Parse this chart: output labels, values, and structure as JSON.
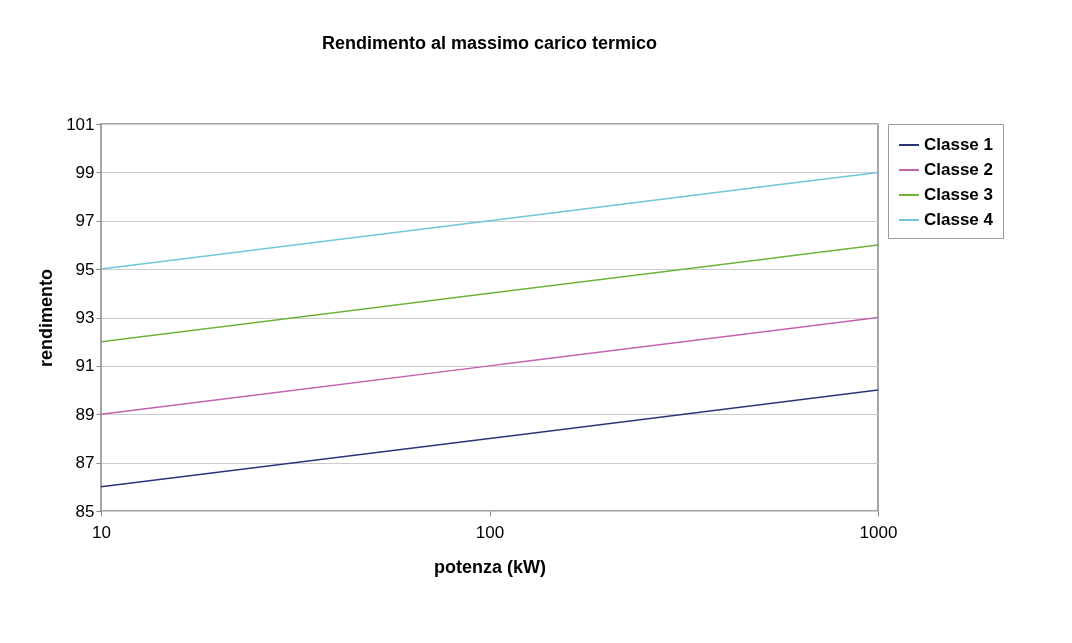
{
  "chart_data": {
    "type": "line",
    "title": "Rendimento al massimo carico termico",
    "xlabel": "potenza (kW)",
    "ylabel": "rendimento",
    "x": [
      10,
      100,
      1000
    ],
    "series": [
      {
        "name": "Classe 1",
        "color": "#2b3378",
        "values": [
          86,
          88,
          90
        ]
      },
      {
        "name": "Classe 2",
        "color": "#c462ac",
        "values": [
          89,
          91,
          93
        ]
      },
      {
        "name": "Classe 3",
        "color": "#6fb23a",
        "values": [
          92,
          94,
          96
        ]
      },
      {
        "name": "Classe 4",
        "color": "#6ec6d6",
        "values": [
          95,
          97,
          99
        ]
      }
    ],
    "xlim": [
      10,
      1000
    ],
    "xticks": [
      10,
      100,
      1000
    ],
    "ylim": [
      85,
      101
    ],
    "yticks": [
      85,
      87,
      89,
      91,
      93,
      95,
      97,
      99,
      101
    ],
    "log": "x",
    "grid": "y",
    "legend": "right"
  }
}
